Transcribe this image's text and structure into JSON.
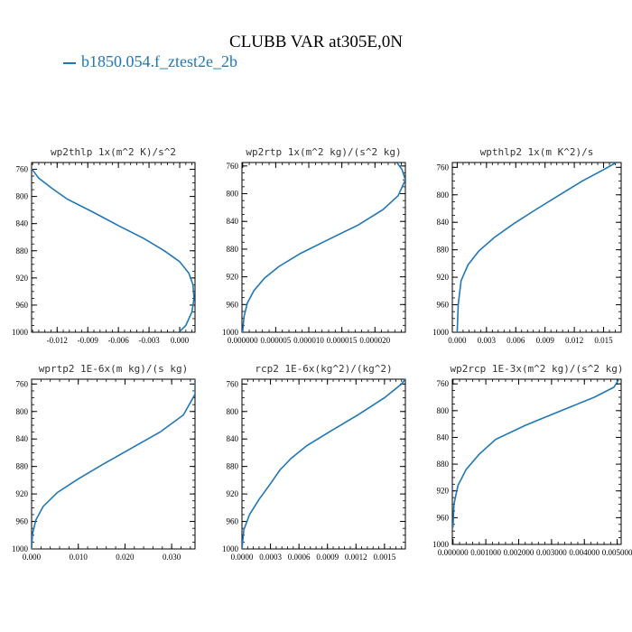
{
  "title": "CLUBB VAR at305E,0N",
  "legend": {
    "label": "b1850.054.f_ztest2e_2b",
    "color": "#1f77b4"
  },
  "chart_data": [
    {
      "type": "line",
      "title": "wp2thlp   1x(m^2 K)/s^2",
      "xlim": [
        -0.0145,
        0.0015
      ],
      "ylim": [
        1000,
        750
      ],
      "xticks": [
        -0.012,
        -0.009,
        -0.006,
        -0.003,
        0.0
      ],
      "xtick_labels": [
        "-0.012",
        "-0.009",
        "-0.006",
        "-0.003",
        "0.000"
      ],
      "yticks": [
        760,
        800,
        840,
        880,
        920,
        960,
        1000
      ],
      "series": [
        {
          "x": [
            -0.0145,
            -0.0138,
            -0.0125,
            -0.011,
            -0.0085,
            -0.006,
            -0.0035,
            -0.0015,
            0.0,
            0.0009,
            0.0013,
            0.0014,
            0.0012,
            0.0006,
            0.0
          ],
          "y": [
            759,
            773,
            788,
            804,
            823,
            843,
            862,
            880,
            896,
            913,
            930,
            950,
            970,
            990,
            999
          ]
        }
      ]
    },
    {
      "type": "line",
      "title": "wp2rtp  1x(m^2 kg)/(s^2 kg)",
      "xlim": [
        -1e-07,
        2.46e-05
      ],
      "ylim": [
        1000,
        755
      ],
      "xticks": [
        0,
        5e-06,
        1e-05,
        1.5e-05,
        2e-05
      ],
      "xtick_labels": [
        "0.000000",
        "0.000005",
        "0.000010",
        "0.000015",
        "0.000020"
      ],
      "yticks": [
        760,
        800,
        840,
        880,
        920,
        960,
        1000
      ],
      "series": [
        {
          "x": [
            2.33e-05,
            2.41e-05,
            2.46e-05,
            2.35e-05,
            2.12e-05,
            1.75e-05,
            1.3e-05,
            8.8e-06,
            5.5e-06,
            3.3e-06,
            1.7e-06,
            7e-07,
            2e-07,
            0.0
          ],
          "y": [
            755,
            765,
            780,
            803,
            823,
            845,
            866,
            886,
            905,
            922,
            940,
            958,
            978,
            1000
          ]
        }
      ]
    },
    {
      "type": "line",
      "title": "wpthlp2  1x(m K^2)/s",
      "xlim": [
        -0.0005,
        0.0168
      ],
      "ylim": [
        1000,
        753
      ],
      "xticks": [
        0.0,
        0.003,
        0.006,
        0.009,
        0.012,
        0.015
      ],
      "xtick_labels": [
        "0.000",
        "0.003",
        "0.006",
        "0.009",
        "0.012",
        "0.015"
      ],
      "yticks": [
        760,
        800,
        840,
        880,
        920,
        960,
        1000
      ],
      "series": [
        {
          "x": [
            0.0163,
            0.0148,
            0.0128,
            0.0105,
            0.008,
            0.0058,
            0.0038,
            0.0022,
            0.0011,
            0.0004,
            0.0001,
            0.0
          ],
          "y": [
            753,
            765,
            780,
            800,
            822,
            842,
            862,
            882,
            902,
            925,
            960,
            1000
          ]
        }
      ]
    },
    {
      "type": "line",
      "title": "wprtp2  1E-6x(m kg)/(s kg)",
      "xlim": [
        0.0,
        0.035
      ],
      "ylim": [
        1000,
        753
      ],
      "xticks": [
        0.0,
        0.01,
        0.02,
        0.03
      ],
      "xtick_labels": [
        "0.000",
        "0.010",
        "0.020",
        "0.030"
      ],
      "yticks": [
        760,
        800,
        840,
        880,
        920,
        960,
        1000
      ],
      "series": [
        {
          "x": [
            0.035,
            0.035,
            0.0325,
            0.0275,
            0.0215,
            0.0155,
            0.01,
            0.0055,
            0.0025,
            0.0009,
            0.0002,
            0.0
          ],
          "y": [
            753,
            775,
            805,
            830,
            853,
            876,
            898,
            918,
            938,
            958,
            978,
            1000
          ]
        }
      ]
    },
    {
      "type": "line",
      "title": "rcp2  1E-6x(kg^2)/(kg^2)",
      "xlim": [
        0.0,
        0.00172
      ],
      "ylim": [
        1000,
        753
      ],
      "xticks": [
        0.0,
        0.0003,
        0.0006,
        0.0009,
        0.0012,
        0.0015
      ],
      "xtick_labels": [
        "0.0000",
        "0.0003",
        "0.0006",
        "0.0009",
        "0.0012",
        "0.0015"
      ],
      "yticks": [
        760,
        800,
        840,
        880,
        920,
        960,
        1000
      ],
      "series": [
        {
          "x": [
            0.00172,
            0.00168,
            0.0015,
            0.00122,
            0.00094,
            0.00068,
            0.00052,
            0.0004,
            0.0003,
            0.00018,
            8e-05,
            2e-05,
            0.0
          ],
          "y": [
            753,
            760,
            780,
            805,
            828,
            850,
            868,
            885,
            905,
            928,
            950,
            972,
            1000
          ]
        }
      ]
    },
    {
      "type": "line",
      "title": "wp2rcp  1E-3x(m^2 kg)/(s^2 kg)",
      "xlim": [
        -2e-05,
        0.00512
      ],
      "ylim": [
        1000,
        753
      ],
      "xticks": [
        0.0,
        0.001,
        0.002,
        0.003,
        0.004,
        0.005
      ],
      "xtick_labels": [
        "0.000000",
        "0.001000",
        "0.002000",
        "0.003000",
        "0.004000",
        "0.005000"
      ],
      "yticks": [
        760,
        800,
        840,
        880,
        920,
        960,
        1000
      ],
      "series": [
        {
          "x": [
            0.00505,
            0.0049,
            0.0043,
            0.0033,
            0.0022,
            0.0013,
            0.0008,
            0.0004,
            0.00015,
            3e-05,
            0.0
          ],
          "y": [
            753,
            765,
            780,
            800,
            822,
            843,
            865,
            888,
            912,
            940,
            975
          ]
        }
      ]
    }
  ]
}
